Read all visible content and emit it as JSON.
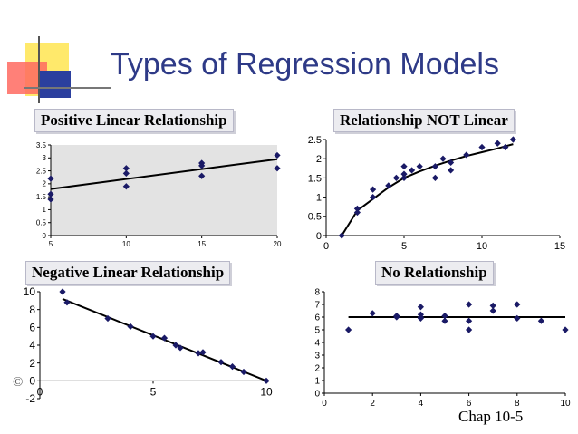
{
  "slide": {
    "title": "Types of Regression Models",
    "footer": "Chap 10-5",
    "stray_mark": "©",
    "colors": {
      "title": "#2e3a87",
      "marker": "#1a1a66",
      "plot_bg": "#e3e3e3",
      "line": "#000000"
    }
  },
  "chart_data": [
    {
      "type": "scatter",
      "title": "Positive Linear Relationship",
      "xlabel": "",
      "ylabel": "",
      "xlim": [
        5,
        20
      ],
      "ylim": [
        0,
        3.5
      ],
      "xticks": [
        "5",
        "10",
        "15",
        "20"
      ],
      "yticks": [
        "0",
        "0.5",
        "1",
        "1.5",
        "2",
        "2.5",
        "3",
        "3.5"
      ],
      "plot_background": "gray",
      "grid": false,
      "points": [
        [
          5,
          1.4
        ],
        [
          5,
          1.6
        ],
        [
          5,
          2.2
        ],
        [
          10,
          1.9
        ],
        [
          10,
          2.4
        ],
        [
          10,
          2.6
        ],
        [
          15,
          2.3
        ],
        [
          15,
          2.7
        ],
        [
          15,
          2.8
        ],
        [
          20,
          2.6
        ],
        [
          20,
          3.1
        ]
      ],
      "fit": {
        "kind": "linear",
        "x": [
          5,
          20
        ],
        "y": [
          1.8,
          2.95
        ]
      }
    },
    {
      "type": "scatter",
      "title": "Relationship NOT Linear",
      "xlabel": "",
      "ylabel": "",
      "xlim": [
        0,
        15
      ],
      "ylim": [
        0,
        2.5
      ],
      "xticks": [
        "0",
        "5",
        "10",
        "15"
      ],
      "yticks": [
        "0",
        "0.5",
        "1",
        "1.5",
        "2",
        "2.5"
      ],
      "grid": false,
      "points": [
        [
          1,
          0
        ],
        [
          2,
          0.6
        ],
        [
          2,
          0.7
        ],
        [
          3,
          1.0
        ],
        [
          3,
          1.2
        ],
        [
          4,
          1.3
        ],
        [
          4.5,
          1.5
        ],
        [
          5,
          1.5
        ],
        [
          5,
          1.6
        ],
        [
          5,
          1.8
        ],
        [
          5.5,
          1.7
        ],
        [
          6,
          1.8
        ],
        [
          7,
          1.5
        ],
        [
          7,
          1.8
        ],
        [
          7.5,
          2.0
        ],
        [
          8,
          1.7
        ],
        [
          8,
          1.9
        ],
        [
          9,
          2.1
        ],
        [
          10,
          2.3
        ],
        [
          11,
          2.4
        ],
        [
          11.5,
          2.3
        ],
        [
          12,
          2.5
        ]
      ],
      "fit": {
        "kind": "curve",
        "x": [
          1,
          2,
          3,
          4,
          5,
          6,
          7,
          8,
          9,
          10,
          11,
          12
        ],
        "y": [
          0,
          0.65,
          0.95,
          1.25,
          1.5,
          1.67,
          1.82,
          1.95,
          2.07,
          2.17,
          2.27,
          2.38
        ]
      }
    },
    {
      "type": "scatter",
      "title": "Negative Linear Relationship",
      "xlabel": "",
      "ylabel": "",
      "xlim": [
        0,
        10
      ],
      "ylim": [
        -2,
        10
      ],
      "xticks": [
        "0",
        "5",
        "10"
      ],
      "yticks": [
        "-2",
        "0",
        "2",
        "4",
        "6",
        "8",
        "10"
      ],
      "grid": false,
      "points": [
        [
          1,
          10
        ],
        [
          1.2,
          8.8
        ],
        [
          3,
          7
        ],
        [
          4,
          6.1
        ],
        [
          5,
          5
        ],
        [
          5.5,
          4.8
        ],
        [
          6,
          4
        ],
        [
          6.2,
          3.7
        ],
        [
          7,
          3.1
        ],
        [
          7.2,
          3.2
        ],
        [
          8,
          2.1
        ],
        [
          8.5,
          1.6
        ],
        [
          9,
          1
        ],
        [
          10,
          0
        ]
      ],
      "fit": {
        "kind": "linear",
        "x": [
          1,
          10
        ],
        "y": [
          9.2,
          0
        ]
      }
    },
    {
      "type": "scatter",
      "title": "No Relationship",
      "xlabel": "",
      "ylabel": "",
      "xlim": [
        0,
        10
      ],
      "ylim": [
        0,
        8
      ],
      "xticks": [
        "0",
        "2",
        "4",
        "6",
        "8",
        "10"
      ],
      "yticks": [
        "0",
        "1",
        "2",
        "3",
        "4",
        "5",
        "6",
        "7",
        "8"
      ],
      "grid": false,
      "points": [
        [
          1,
          5
        ],
        [
          2,
          6.3
        ],
        [
          3,
          6
        ],
        [
          3,
          6.1
        ],
        [
          4,
          5.9
        ],
        [
          4,
          6
        ],
        [
          4,
          6.2
        ],
        [
          4,
          6.8
        ],
        [
          5,
          5.7
        ],
        [
          5,
          6.1
        ],
        [
          6,
          5
        ],
        [
          6,
          5.7
        ],
        [
          6,
          7
        ],
        [
          7,
          6.5
        ],
        [
          7,
          6.9
        ],
        [
          8,
          5.9
        ],
        [
          8,
          7
        ],
        [
          9,
          5.7
        ],
        [
          10,
          5
        ]
      ],
      "fit": {
        "kind": "linear",
        "x": [
          1,
          10
        ],
        "y": [
          6,
          6
        ]
      }
    }
  ]
}
